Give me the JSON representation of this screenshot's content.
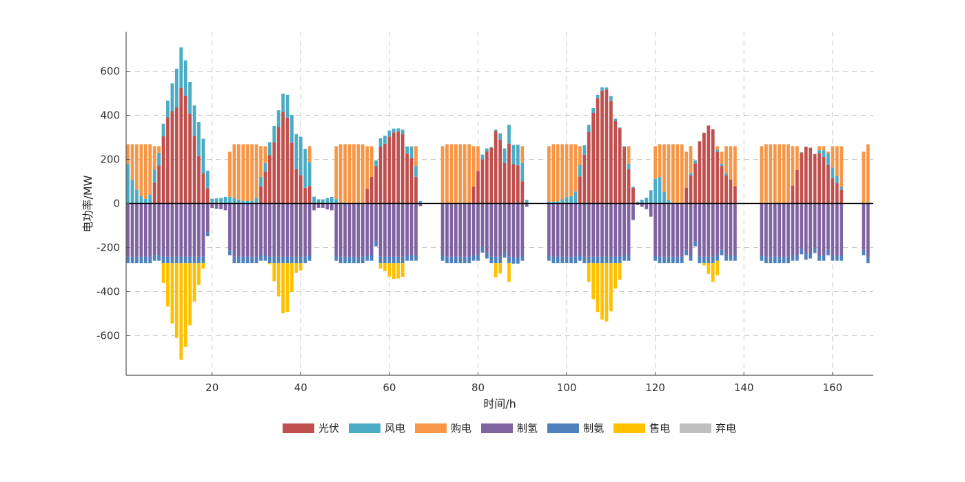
{
  "chart_data": {
    "type": "bar",
    "stacked": true,
    "title": "",
    "xlabel": "时间/h",
    "ylabel": "电功率/MW",
    "xlim": [
      0.6,
      169.2
    ],
    "ylim": [
      -780,
      780
    ],
    "xticks": [
      20,
      40,
      60,
      80,
      100,
      120,
      140,
      160
    ],
    "yticks": [
      -600,
      -400,
      -200,
      0,
      200,
      400,
      600
    ],
    "grid": true,
    "legend_position": "bottom-center",
    "x_start": 1,
    "series": [
      {
        "name": "光伏",
        "color": "#C0504D",
        "values": [
          0,
          0,
          0,
          0,
          0,
          0,
          94,
          172,
          305,
          391,
          419,
          436,
          525,
          490,
          407,
          307,
          215,
          136,
          69,
          0,
          0,
          0,
          0,
          0,
          0,
          0,
          0,
          0,
          0,
          0,
          79,
          144,
          219,
          279,
          347,
          416,
          389,
          276,
          157,
          128,
          71,
          79,
          0,
          0,
          0,
          0,
          0,
          0,
          0,
          0,
          0,
          0,
          0,
          0,
          66,
          121,
          170,
          258,
          271,
          304,
          323,
          326,
          314,
          227,
          206,
          121,
          0,
          0,
          0,
          0,
          0,
          0,
          0,
          0,
          0,
          0,
          0,
          0,
          77,
          147,
          201,
          237,
          253,
          329,
          290,
          183,
          271,
          178,
          173,
          101,
          0,
          0,
          0,
          0,
          0,
          0,
          0,
          0,
          0,
          0,
          0,
          0,
          123,
          221,
          325,
          411,
          479,
          512,
          517,
          465,
          375,
          342,
          255,
          156,
          71,
          0,
          0,
          0,
          0,
          0,
          0,
          0,
          0,
          0,
          0,
          0,
          71,
          128,
          182,
          282,
          321,
          354,
          337,
          235,
          170,
          128,
          109,
          79,
          0,
          0,
          0,
          0,
          0,
          0,
          0,
          0,
          0,
          0,
          0,
          0,
          81,
          152,
          229,
          258,
          253,
          225,
          229,
          211,
          175,
          115,
          92,
          62,
          0,
          0,
          0,
          0,
          0,
          0
        ]
      },
      {
        "name": "风电",
        "color": "#4BACC6",
        "values": [
          179,
          107,
          62,
          33,
          21,
          40,
          59,
          58,
          57,
          76,
          126,
          176,
          184,
          160,
          145,
          138,
          155,
          158,
          80,
          22,
          23,
          25,
          30,
          31,
          25,
          18,
          12,
          12,
          12,
          25,
          42,
          39,
          59,
          73,
          76,
          83,
          104,
          126,
          158,
          175,
          177,
          109,
          31,
          19,
          19,
          25,
          30,
          20,
          5,
          0,
          0,
          0,
          0,
          0,
          0,
          0,
          26,
          38,
          37,
          27,
          17,
          15,
          21,
          32,
          53,
          49,
          11,
          0,
          0,
          0,
          0,
          0,
          0,
          0,
          0,
          0,
          0,
          0,
          0,
          0,
          21,
          13,
          3,
          6,
          28,
          67,
          86,
          88,
          94,
          84,
          16,
          0,
          0,
          0,
          0,
          8,
          8,
          10,
          19,
          29,
          33,
          54,
          52,
          43,
          32,
          22,
          14,
          15,
          10,
          23,
          10,
          3,
          5,
          24,
          5,
          8,
          17,
          26,
          60,
          112,
          120,
          52,
          16,
          0,
          0,
          0,
          0,
          10,
          14,
          0,
          0,
          0,
          0,
          10,
          10,
          10,
          0,
          0,
          0,
          0,
          0,
          0,
          0,
          0,
          0,
          0,
          0,
          0,
          0,
          0,
          0,
          0,
          3,
          0,
          0,
          0,
          13,
          31,
          52,
          48,
          33,
          13,
          0,
          0,
          0,
          0,
          0,
          0
        ]
      },
      {
        "name": "购电",
        "color": "#F79646",
        "values": [
          90,
          162,
          207,
          236,
          248,
          229,
          107,
          30,
          0,
          0,
          0,
          0,
          0,
          0,
          0,
          0,
          0,
          0,
          0,
          0,
          0,
          0,
          0,
          204,
          244,
          251,
          257,
          257,
          257,
          244,
          139,
          77,
          0,
          0,
          0,
          0,
          0,
          0,
          0,
          0,
          0,
          72,
          0,
          0,
          0,
          0,
          0,
          240,
          264,
          269,
          269,
          269,
          269,
          269,
          194,
          139,
          0,
          0,
          0,
          0,
          0,
          0,
          0,
          0,
          0,
          90,
          0,
          0,
          0,
          0,
          0,
          260,
          269,
          269,
          269,
          269,
          269,
          269,
          183,
          113,
          0,
          0,
          0,
          0,
          0,
          0,
          0,
          0,
          0,
          75,
          0,
          0,
          0,
          0,
          0,
          252,
          261,
          259,
          250,
          240,
          236,
          215,
          85,
          0,
          0,
          0,
          0,
          0,
          0,
          0,
          0,
          0,
          0,
          80,
          0,
          0,
          0,
          0,
          0,
          148,
          149,
          217,
          253,
          269,
          269,
          269,
          164,
          122,
          0,
          0,
          0,
          0,
          0,
          15,
          55,
          122,
          151,
          181,
          0,
          0,
          0,
          0,
          0,
          260,
          269,
          269,
          269,
          269,
          269,
          269,
          179,
          108,
          1,
          0,
          0,
          0,
          18,
          18,
          8,
          97,
          135,
          185,
          0,
          0,
          0,
          0,
          235,
          269
        ]
      },
      {
        "name": "制氢",
        "color": "#8064A2",
        "values": [
          -242,
          -242,
          -242,
          -242,
          -242,
          -242,
          -234,
          -234,
          -242,
          -242,
          -242,
          -242,
          -242,
          -242,
          -242,
          -242,
          -242,
          -242,
          -130,
          -21,
          -24,
          -26,
          -31,
          -212,
          -242,
          -242,
          -242,
          -242,
          -242,
          -242,
          -236,
          -236,
          -242,
          -242,
          -242,
          -242,
          -242,
          -242,
          -242,
          -242,
          -242,
          -236,
          -31,
          -20,
          -20,
          -27,
          -31,
          -236,
          -242,
          -242,
          -242,
          -242,
          -242,
          -242,
          -236,
          -236,
          -169,
          -242,
          -242,
          -242,
          -242,
          -242,
          -242,
          -236,
          -236,
          -236,
          -12,
          0,
          0,
          0,
          0,
          -236,
          -242,
          -242,
          -242,
          -242,
          -242,
          -242,
          -236,
          -236,
          -197,
          -226,
          -242,
          -242,
          -242,
          -222,
          -242,
          -244,
          -244,
          -236,
          -15,
          0,
          0,
          0,
          0,
          -236,
          -242,
          -242,
          -242,
          -242,
          -242,
          -242,
          -236,
          -242,
          -242,
          -242,
          -242,
          -242,
          -242,
          -242,
          -242,
          -242,
          -236,
          -236,
          -75,
          -7,
          -15,
          -26,
          -60,
          -236,
          -242,
          -242,
          -242,
          -242,
          -242,
          -242,
          -210,
          -236,
          -171,
          -242,
          -242,
          -242,
          -242,
          -236,
          -210,
          -236,
          -236,
          -236,
          0,
          0,
          0,
          0,
          0,
          -236,
          -242,
          -242,
          -242,
          -242,
          -242,
          -242,
          -236,
          -236,
          -205,
          -230,
          -225,
          -200,
          -236,
          -236,
          -210,
          -236,
          -236,
          -236,
          0,
          0,
          0,
          0,
          -210,
          -242
        ]
      },
      {
        "name": "制氨",
        "color": "#4F81BD",
        "values": [
          -29,
          -29,
          -29,
          -29,
          -29,
          -29,
          -26,
          -26,
          -29,
          -29,
          -29,
          -29,
          -29,
          -29,
          -29,
          -29,
          -29,
          -29,
          -19,
          0,
          0,
          0,
          0,
          -23,
          -29,
          -29,
          -29,
          -29,
          -29,
          -29,
          -24,
          -24,
          -29,
          -29,
          -29,
          -29,
          -29,
          -29,
          -29,
          -29,
          -29,
          -24,
          0,
          0,
          0,
          0,
          0,
          -24,
          -29,
          -29,
          -29,
          -29,
          -29,
          -29,
          -24,
          -24,
          -26,
          -29,
          -29,
          -29,
          -29,
          -29,
          -29,
          -24,
          -24,
          -24,
          0,
          0,
          0,
          0,
          0,
          -24,
          -29,
          -29,
          -29,
          -29,
          -29,
          -29,
          -24,
          -24,
          -26,
          -24,
          -29,
          -29,
          -29,
          -24,
          -29,
          -29,
          -29,
          -24,
          0,
          0,
          0,
          0,
          0,
          -24,
          -29,
          -29,
          -29,
          -29,
          -29,
          -29,
          -24,
          -29,
          -29,
          -29,
          -29,
          -29,
          -29,
          -29,
          -29,
          -29,
          -24,
          -24,
          0,
          0,
          0,
          0,
          0,
          -24,
          -29,
          -29,
          -29,
          -29,
          -29,
          -29,
          -25,
          -24,
          -24,
          -29,
          -29,
          -29,
          -29,
          -24,
          -25,
          -24,
          -24,
          -24,
          0,
          0,
          0,
          0,
          0,
          -24,
          -29,
          -29,
          -29,
          -29,
          -29,
          -29,
          -24,
          -24,
          -26,
          -25,
          -25,
          -25,
          -24,
          -24,
          -25,
          -24,
          -24,
          -24,
          0,
          0,
          0,
          0,
          -25,
          -29
        ]
      },
      {
        "name": "售电",
        "color": "#FFC000",
        "values": [
          0,
          0,
          0,
          0,
          0,
          0,
          0,
          0,
          -90,
          -197,
          -274,
          -340,
          -439,
          -380,
          -282,
          -175,
          -99,
          -25,
          0,
          0,
          0,
          0,
          0,
          0,
          0,
          0,
          0,
          0,
          0,
          0,
          0,
          0,
          -5,
          -82,
          -151,
          -228,
          -222,
          -131,
          -44,
          -33,
          0,
          0,
          0,
          0,
          0,
          0,
          0,
          0,
          0,
          0,
          0,
          0,
          0,
          0,
          0,
          0,
          0,
          -25,
          -36,
          -61,
          -72,
          -70,
          -62,
          0,
          0,
          0,
          0,
          0,
          0,
          0,
          0,
          0,
          0,
          0,
          0,
          0,
          0,
          0,
          0,
          0,
          0,
          0,
          0,
          -64,
          -47,
          0,
          -85,
          0,
          0,
          0,
          0,
          0,
          0,
          0,
          0,
          0,
          0,
          0,
          0,
          0,
          0,
          0,
          0,
          0,
          -85,
          -163,
          -222,
          -257,
          -265,
          -219,
          -115,
          -75,
          0,
          0,
          0,
          0,
          0,
          0,
          0,
          0,
          0,
          0,
          0,
          0,
          0,
          0,
          0,
          0,
          0,
          0,
          -10,
          -49,
          -85,
          -66,
          0,
          0,
          0,
          0,
          0,
          0,
          0,
          0,
          0,
          0,
          0,
          0,
          0,
          0,
          0,
          0,
          0,
          0,
          0,
          0,
          0,
          0,
          0,
          0,
          0,
          0,
          0,
          0,
          0,
          0,
          0,
          0,
          0,
          0,
          0,
          0,
          0
        ]
      },
      {
        "name": "弃电",
        "color": "#BFBFBF",
        "values": [
          0,
          0,
          0,
          0,
          0,
          0,
          0,
          0,
          0,
          0,
          0,
          0,
          0,
          0,
          0,
          0,
          0,
          0,
          0,
          0,
          0,
          0,
          0,
          0,
          0,
          0,
          0,
          0,
          0,
          0,
          0,
          0,
          0,
          0,
          0,
          0,
          0,
          0,
          0,
          0,
          0,
          0,
          0,
          0,
          0,
          0,
          0,
          0,
          0,
          0,
          0,
          0,
          0,
          0,
          0,
          0,
          0,
          0,
          0,
          0,
          0,
          0,
          0,
          0,
          0,
          0,
          0,
          0,
          0,
          0,
          0,
          0,
          0,
          0,
          0,
          0,
          0,
          0,
          0,
          0,
          0,
          0,
          0,
          0,
          0,
          0,
          0,
          0,
          0,
          0,
          0,
          0,
          0,
          0,
          0,
          0,
          0,
          0,
          0,
          0,
          0,
          0,
          0,
          0,
          0,
          0,
          0,
          0,
          0,
          0,
          0,
          0,
          0,
          0,
          0,
          0,
          0,
          0,
          0,
          0,
          0,
          0,
          0,
          0,
          0,
          0,
          0,
          0,
          0,
          0,
          0,
          0,
          0,
          0,
          0,
          0,
          0,
          0,
          0,
          0,
          0,
          0,
          0,
          0,
          0,
          0,
          0,
          0,
          0,
          0,
          0,
          0,
          0,
          0,
          0,
          0,
          0,
          0,
          0,
          0,
          0,
          0,
          0,
          0,
          0,
          0,
          0,
          0
        ]
      }
    ]
  }
}
